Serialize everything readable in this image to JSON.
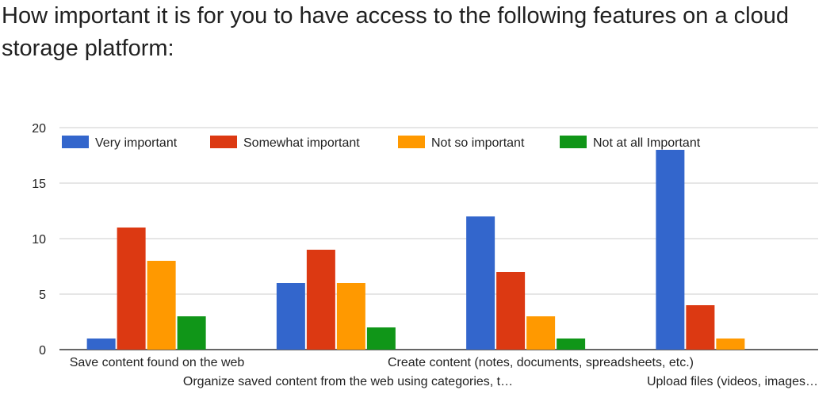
{
  "chart_data": {
    "type": "bar",
    "title": "How important it is for you to have access to the following features on a cloud storage platform:",
    "categories": [
      "Save content found on the web",
      "Organize saved content from the web using categories, t…",
      "Create content (notes, documents, spreadsheets, etc.)",
      "Upload files (videos, images…"
    ],
    "series": [
      {
        "name": "Very important",
        "color": "#3366cc",
        "values": [
          1,
          6,
          12,
          18
        ]
      },
      {
        "name": "Somewhat important",
        "color": "#dc3912",
        "values": [
          11,
          9,
          7,
          4
        ]
      },
      {
        "name": "Not so important",
        "color": "#ff9900",
        "values": [
          8,
          6,
          3,
          1
        ]
      },
      {
        "name": "Not at all Important",
        "color": "#109618",
        "values": [
          3,
          2,
          1,
          0
        ]
      }
    ],
    "ylim": [
      0,
      20
    ],
    "yticks": [
      0,
      5,
      10,
      15,
      20
    ],
    "grid": true,
    "legend_position": "top"
  }
}
